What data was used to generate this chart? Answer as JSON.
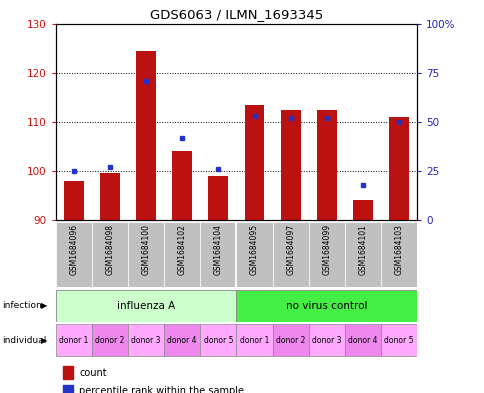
{
  "title": "GDS6063 / ILMN_1693345",
  "samples": [
    "GSM1684096",
    "GSM1684098",
    "GSM1684100",
    "GSM1684102",
    "GSM1684104",
    "GSM1684095",
    "GSM1684097",
    "GSM1684099",
    "GSM1684101",
    "GSM1684103"
  ],
  "counts": [
    98,
    99.5,
    124.5,
    104,
    99,
    113.5,
    112.5,
    112.5,
    94,
    111
  ],
  "percentiles": [
    25,
    27,
    71,
    42,
    26,
    53,
    52,
    52,
    18,
    50
  ],
  "ylim_left": [
    90,
    130
  ],
  "ylim_right": [
    0,
    100
  ],
  "yticks_left": [
    90,
    100,
    110,
    120,
    130
  ],
  "yticks_right": [
    0,
    25,
    50,
    75,
    100
  ],
  "ytick_labels_right": [
    "0",
    "25",
    "50",
    "75",
    "100%"
  ],
  "bar_color": "#bb1111",
  "dot_color": "#2233cc",
  "infection_groups": [
    {
      "label": "influenza A",
      "start": 0,
      "end": 5,
      "color": "#ccffcc"
    },
    {
      "label": "no virus control",
      "start": 5,
      "end": 10,
      "color": "#44ee44"
    }
  ],
  "individual_labels": [
    "donor 1",
    "donor 2",
    "donor 3",
    "donor 4",
    "donor 5",
    "donor 1",
    "donor 2",
    "donor 3",
    "donor 4",
    "donor 5"
  ],
  "individual_colors_alt": [
    "#ffaaff",
    "#ee88ee",
    "#ffaaff",
    "#ee88ee",
    "#ffaaff",
    "#ffaaff",
    "#ee88ee",
    "#ffaaff",
    "#ee88ee",
    "#ffaaff"
  ],
  "legend_count_color": "#bb1111",
  "legend_percentile_color": "#2233cc",
  "sample_bg_color": "#bbbbbb",
  "plot_bg_color": "#ffffff",
  "left_tick_color": "#cc1111",
  "right_tick_color": "#2222bb"
}
